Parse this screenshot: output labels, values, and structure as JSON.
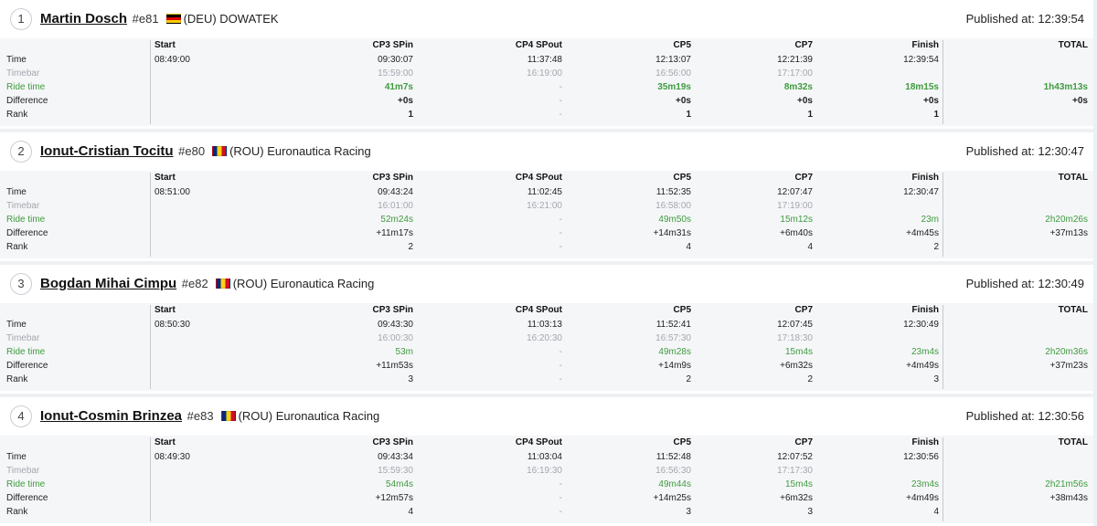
{
  "columns": [
    "Start",
    "CP3 SPin",
    "CP4 SPout",
    "CP5",
    "CP7",
    "Finish",
    "TOTAL"
  ],
  "row_labels": [
    "Time",
    "Timebar",
    "Ride time",
    "Difference",
    "Rank"
  ],
  "published_prefix": "Published at:",
  "colors": {
    "ride_time": "#3f9b3f",
    "timebar": "#a3a7ad"
  },
  "riders": [
    {
      "position": "1",
      "name": "Martin Dosch",
      "bib": "#e81",
      "flag": "germany-flag",
      "country": "(DEU)",
      "team": "DOWATEK",
      "published": "12:39:54",
      "time": [
        "08:49:00",
        "09:30:07",
        "11:37:48",
        "12:13:07",
        "12:21:39",
        "12:39:54",
        ""
      ],
      "timebar": [
        "",
        "15:59:00",
        "16:19:00",
        "16:56:00",
        "17:17:00",
        "",
        ""
      ],
      "ride_time": [
        "",
        "41m7s",
        "-",
        "35m19s",
        "8m32s",
        "18m15s",
        "1h43m13s"
      ],
      "difference": [
        "",
        "+0s",
        "-",
        "+0s",
        "+0s",
        "+0s",
        "+0s"
      ],
      "rank": [
        "",
        "1",
        "-",
        "1",
        "1",
        "1",
        ""
      ]
    },
    {
      "position": "2",
      "name": "Ionut-Cristian Tocitu",
      "bib": "#e80",
      "flag": "romania-flag",
      "country": "(ROU)",
      "team": "Euronautica Racing",
      "published": "12:30:47",
      "time": [
        "08:51:00",
        "09:43:24",
        "11:02:45",
        "11:52:35",
        "12:07:47",
        "12:30:47",
        ""
      ],
      "timebar": [
        "",
        "16:01:00",
        "16:21:00",
        "16:58:00",
        "17:19:00",
        "",
        ""
      ],
      "ride_time": [
        "",
        "52m24s",
        "-",
        "49m50s",
        "15m12s",
        "23m",
        "2h20m26s"
      ],
      "difference": [
        "",
        "+11m17s",
        "-",
        "+14m31s",
        "+6m40s",
        "+4m45s",
        "+37m13s"
      ],
      "rank": [
        "",
        "2",
        "-",
        "4",
        "4",
        "2",
        ""
      ]
    },
    {
      "position": "3",
      "name": "Bogdan Mihai Cimpu",
      "bib": "#e82",
      "flag": "romania-flag",
      "country": "(ROU)",
      "team": "Euronautica Racing",
      "published": "12:30:49",
      "time": [
        "08:50:30",
        "09:43:30",
        "11:03:13",
        "11:52:41",
        "12:07:45",
        "12:30:49",
        ""
      ],
      "timebar": [
        "",
        "16:00:30",
        "16:20:30",
        "16:57:30",
        "17:18:30",
        "",
        ""
      ],
      "ride_time": [
        "",
        "53m",
        "-",
        "49m28s",
        "15m4s",
        "23m4s",
        "2h20m36s"
      ],
      "difference": [
        "",
        "+11m53s",
        "-",
        "+14m9s",
        "+6m32s",
        "+4m49s",
        "+37m23s"
      ],
      "rank": [
        "",
        "3",
        "-",
        "2",
        "2",
        "3",
        ""
      ]
    },
    {
      "position": "4",
      "name": "Ionut-Cosmin Brinzea",
      "bib": "#e83",
      "flag": "romania-flag",
      "country": "(ROU)",
      "team": "Euronautica Racing",
      "published": "12:30:56",
      "time": [
        "08:49:30",
        "09:43:34",
        "11:03:04",
        "11:52:48",
        "12:07:52",
        "12:30:56",
        ""
      ],
      "timebar": [
        "",
        "15:59:30",
        "16:19:30",
        "16:56:30",
        "17:17:30",
        "",
        ""
      ],
      "ride_time": [
        "",
        "54m4s",
        "-",
        "49m44s",
        "15m4s",
        "23m4s",
        "2h21m56s"
      ],
      "difference": [
        "",
        "+12m57s",
        "-",
        "+14m25s",
        "+6m32s",
        "+4m49s",
        "+38m43s"
      ],
      "rank": [
        "",
        "4",
        "-",
        "3",
        "3",
        "4",
        ""
      ]
    }
  ]
}
